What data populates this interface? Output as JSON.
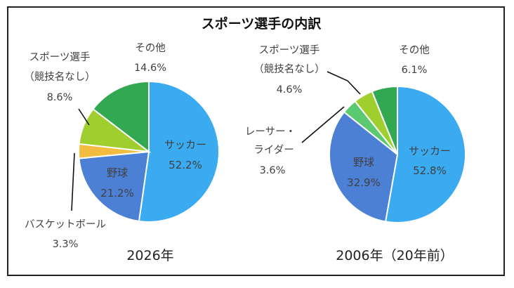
{
  "chart_data": {
    "title": "スポーツ選手の内訳",
    "charts": [
      {
        "type": "pie",
        "caption": "2026年",
        "slices": [
          {
            "label": "サッカー",
            "value": 52.2,
            "value_text": "52.2%",
            "color": "#3aabf0"
          },
          {
            "label": "野球",
            "value": 21.2,
            "value_text": "21.2%",
            "color": "#4c80d4"
          },
          {
            "label": "バスケットボール",
            "value": 3.3,
            "value_text": "3.3%",
            "color": "#f2bc41"
          },
          {
            "label_lines": [
              "スポーツ選手",
              "（競技名なし）"
            ],
            "value": 8.6,
            "value_text": "8.6%",
            "color": "#9fcf2f"
          },
          {
            "label": "その他",
            "value": 14.6,
            "value_text": "14.6%",
            "color": "#33a852"
          }
        ]
      },
      {
        "type": "pie",
        "caption": "2006年（20年前）",
        "slices": [
          {
            "label": "サッカー",
            "value": 52.8,
            "value_text": "52.8%",
            "color": "#3aabf0"
          },
          {
            "label": "野球",
            "value": 32.9,
            "value_text": "32.9%",
            "color": "#4c80d4"
          },
          {
            "label_lines": [
              "レーサー・",
              "ライダー"
            ],
            "value": 3.6,
            "value_text": "3.6%",
            "color": "#5bc96f"
          },
          {
            "label_lines": [
              "スポーツ選手",
              "（競技名なし）"
            ],
            "value": 4.6,
            "value_text": "4.6%",
            "color": "#9fcf2f"
          },
          {
            "label": "その他",
            "value": 6.1,
            "value_text": "6.1%",
            "color": "#33a852"
          }
        ]
      }
    ]
  }
}
